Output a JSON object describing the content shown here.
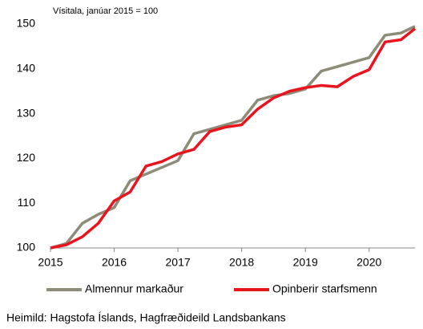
{
  "chart_data": {
    "type": "line",
    "subtitle": "Vísitala, janúar 2015 = 100",
    "source": "Heimild: Hagstofa Íslands, Hagfræðideild Landsbankans",
    "x": [
      2015,
      2015.25,
      2015.5,
      2015.75,
      2016,
      2016.25,
      2016.5,
      2016.75,
      2017,
      2017.25,
      2017.5,
      2017.75,
      2018,
      2018.25,
      2018.5,
      2018.75,
      2019,
      2019.25,
      2019.5,
      2019.75,
      2020,
      2020.25,
      2020.5,
      2020.72
    ],
    "series": [
      {
        "name": "Almennur markaður",
        "color": "#8c8c78",
        "values": [
          100,
          101,
          105.5,
          107.5,
          109,
          115,
          116.5,
          118,
          119.5,
          125.5,
          126.5,
          127.5,
          128.5,
          133,
          134,
          134.5,
          135.5,
          139.5,
          140.5,
          141.5,
          142.5,
          147.5,
          148,
          149.5
        ]
      },
      {
        "name": "Opinberir starfsmenn",
        "color": "#e8141e",
        "values": [
          100,
          100.7,
          102.5,
          105.5,
          110.5,
          112.5,
          118.3,
          119.3,
          121,
          122,
          126,
          127,
          127.5,
          131,
          133.5,
          135,
          135.8,
          136.3,
          136,
          138.3,
          139.8,
          146,
          146.5,
          149
        ]
      }
    ],
    "xlim": [
      2015,
      2020.72
    ],
    "xticks": [
      2015,
      2016,
      2017,
      2018,
      2019,
      2020
    ],
    "ylim": [
      100,
      150
    ],
    "yticks": [
      100,
      110,
      120,
      130,
      140,
      150
    ],
    "grid": false,
    "legend": "bottom"
  }
}
